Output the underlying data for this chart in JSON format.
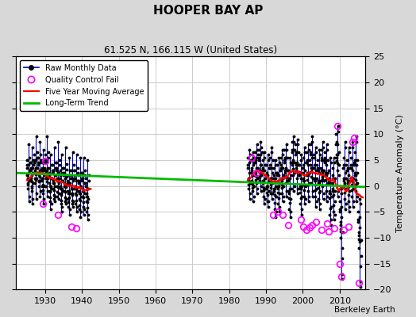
{
  "title": "HOOPER BAY AP",
  "subtitle": "61.525 N, 166.115 W (United States)",
  "ylabel": "Temperature Anomaly (°C)",
  "credit": "Berkeley Earth",
  "xlim": [
    1922,
    2017
  ],
  "ylim": [
    -20,
    25
  ],
  "yticks": [
    -20,
    -15,
    -10,
    -5,
    0,
    5,
    10,
    15,
    20,
    25
  ],
  "xticks": [
    1930,
    1940,
    1950,
    1960,
    1970,
    1980,
    1990,
    2000,
    2010
  ],
  "trend_x": [
    1922,
    2017
  ],
  "trend_y": [
    2.5,
    -0.2
  ],
  "raw_color": "#0000cc",
  "dot_color": "#000000",
  "qc_color": "#ff00ff",
  "ma_color": "#ff0000",
  "trend_color": "#00bb00",
  "bg_color": "#d8d8d8",
  "plot_bg": "#ffffff",
  "grid_color": "#cccccc",
  "seg1": {
    "year_start": 1925,
    "year_end": 1941,
    "annual_max": [
      8.0,
      7.5,
      9.5,
      8.5,
      7.0,
      9.5,
      6.0,
      7.5,
      8.5,
      6.0,
      7.5,
      5.5,
      6.5,
      6.0,
      5.5,
      5.5,
      5.0
    ],
    "annual_min": [
      -3.0,
      -3.5,
      -2.5,
      -2.0,
      -3.5,
      -2.0,
      -4.5,
      -3.0,
      -2.5,
      -5.0,
      -3.5,
      -5.5,
      -4.0,
      -5.0,
      -6.0,
      -5.5,
      -6.5
    ],
    "annual_mean": [
      2.5,
      2.2,
      2.8,
      2.5,
      1.8,
      2.5,
      1.0,
      1.5,
      2.0,
      0.8,
      1.5,
      0.2,
      1.0,
      0.8,
      0.2,
      0.5,
      -0.2
    ],
    "monthly_vals": [
      [
        3.5,
        5.0,
        4.0,
        2.0,
        1.5,
        0.5,
        -0.5,
        0.2,
        1.2,
        2.5,
        4.0,
        8.0,
        -3.0,
        -2.0,
        1.0,
        3.0,
        5.5,
        4.5
      ],
      [
        3.0,
        4.5,
        3.5,
        1.5,
        1.0,
        0.0,
        -1.0,
        -0.3,
        0.8,
        2.0,
        3.5,
        7.5,
        -3.5,
        -2.5,
        0.5,
        2.5,
        5.0,
        4.0
      ],
      [
        4.5,
        6.0,
        5.0,
        3.0,
        2.5,
        1.5,
        0.5,
        1.2,
        2.2,
        3.5,
        5.0,
        9.5,
        -2.5,
        -1.5,
        1.5,
        3.5,
        6.5,
        5.5
      ],
      [
        4.0,
        5.5,
        4.5,
        2.5,
        2.0,
        1.0,
        0.0,
        0.8,
        1.8,
        3.0,
        4.5,
        8.5,
        -2.0,
        -1.0,
        1.0,
        3.0,
        6.0,
        5.0
      ],
      [
        3.0,
        4.5,
        3.5,
        1.5,
        1.0,
        0.0,
        -1.5,
        -0.8,
        0.2,
        1.5,
        3.0,
        7.0,
        -3.5,
        -2.5,
        0.0,
        2.0,
        4.5,
        3.5
      ],
      [
        4.5,
        6.0,
        5.0,
        3.0,
        2.5,
        1.5,
        0.0,
        0.8,
        1.8,
        3.0,
        4.5,
        9.5,
        -2.0,
        -1.0,
        1.5,
        3.5,
        6.5,
        5.5
      ],
      [
        2.0,
        3.5,
        2.5,
        0.5,
        0.0,
        -1.0,
        -3.0,
        -2.2,
        -1.2,
        0.0,
        1.5,
        6.0,
        -4.5,
        -3.5,
        -0.5,
        1.5,
        4.0,
        3.0
      ],
      [
        2.5,
        4.0,
        3.0,
        1.0,
        0.5,
        -0.5,
        -2.5,
        -1.8,
        -0.8,
        0.5,
        2.0,
        7.5,
        -3.0,
        -2.0,
        0.0,
        2.0,
        4.5,
        3.5
      ],
      [
        3.0,
        4.5,
        3.5,
        1.5,
        1.0,
        0.0,
        -2.0,
        -1.2,
        -0.2,
        1.0,
        2.5,
        8.5,
        -2.5,
        -1.5,
        0.5,
        2.5,
        5.0,
        4.0
      ],
      [
        1.5,
        3.0,
        2.0,
        0.0,
        -0.5,
        -1.5,
        -3.5,
        -2.8,
        -1.8,
        -0.5,
        1.0,
        6.0,
        -5.0,
        -4.0,
        -1.0,
        1.0,
        3.5,
        2.5
      ],
      [
        2.0,
        3.5,
        2.5,
        0.5,
        0.0,
        -1.0,
        -3.0,
        -2.2,
        -1.2,
        0.0,
        1.5,
        7.5,
        -3.5,
        -2.5,
        -0.2,
        1.8,
        4.2,
        3.2
      ],
      [
        0.5,
        2.0,
        1.0,
        -1.0,
        -1.5,
        -2.5,
        -4.0,
        -3.2,
        -2.2,
        -1.0,
        0.5,
        5.5,
        -5.5,
        -4.5,
        -1.5,
        0.5,
        3.0,
        2.0
      ],
      [
        1.5,
        3.0,
        2.0,
        0.0,
        -0.5,
        -1.5,
        -3.5,
        -2.8,
        -1.8,
        -0.5,
        1.0,
        6.5,
        -4.0,
        -3.0,
        -0.5,
        1.5,
        4.0,
        3.0
      ],
      [
        1.5,
        3.0,
        2.0,
        0.0,
        -0.5,
        -1.5,
        -3.5,
        -2.8,
        -1.8,
        -0.5,
        1.0,
        6.0,
        -5.0,
        -4.0,
        -1.0,
        1.0,
        3.5,
        2.5
      ],
      [
        0.5,
        2.0,
        1.0,
        -1.0,
        -1.5,
        -2.5,
        -4.5,
        -3.8,
        -2.8,
        -1.5,
        0.0,
        5.5,
        -6.0,
        -5.0,
        -2.0,
        0.0,
        2.5,
        1.5
      ],
      [
        1.0,
        2.5,
        1.5,
        -0.5,
        -1.0,
        -2.0,
        -4.0,
        -3.2,
        -2.2,
        -1.0,
        0.5,
        5.5,
        -5.5,
        -4.5,
        -1.5,
        0.5,
        3.0,
        2.0
      ],
      [
        0.0,
        1.5,
        0.5,
        -1.5,
        -2.0,
        -3.0,
        -5.0,
        -4.2,
        -3.2,
        -2.0,
        -0.5,
        5.0,
        -6.5,
        -5.5,
        -2.5,
        -0.5,
        2.0,
        1.0
      ]
    ],
    "qc_points": [
      [
        1929.3,
        -3.5
      ],
      [
        1930.1,
        4.8
      ],
      [
        1933.5,
        -5.5
      ],
      [
        1937.2,
        -7.8
      ],
      [
        1938.4,
        -8.2
      ]
    ]
  },
  "seg2": {
    "year_start": 1985,
    "year_end": 2015,
    "annual_max": [
      7.0,
      6.5,
      8.0,
      8.5,
      6.5,
      6.0,
      7.5,
      5.0,
      5.5,
      7.0,
      8.0,
      5.5,
      9.5,
      9.0,
      6.0,
      7.5,
      8.0,
      9.5,
      7.5,
      7.0,
      8.5,
      8.0,
      5.5,
      5.5,
      11.5,
      10.5,
      8.5,
      7.5,
      8.5,
      9.5,
      5.5
    ],
    "annual_min": [
      -2.5,
      -3.0,
      -1.5,
      -1.0,
      -3.5,
      -4.0,
      -2.5,
      -6.0,
      -5.0,
      -3.0,
      -2.0,
      -6.0,
      -1.0,
      -1.5,
      -5.5,
      -3.5,
      -3.0,
      -2.0,
      -4.0,
      -4.5,
      -2.5,
      -3.0,
      -7.5,
      -6.5,
      -2.0,
      -18.0,
      -4.5,
      -5.0,
      -4.0,
      -3.0,
      -19.5
    ],
    "annual_mean": [
      1.5,
      1.2,
      2.0,
      2.5,
      1.0,
      0.5,
      1.5,
      -0.5,
      0.0,
      1.5,
      2.5,
      -1.0,
      3.5,
      3.0,
      0.5,
      1.5,
      2.0,
      3.0,
      1.2,
      0.8,
      2.0,
      1.5,
      -1.0,
      -0.5,
      2.5,
      -2.5,
      1.5,
      1.0,
      1.5,
      2.0,
      -3.5
    ],
    "monthly_vals": [
      [
        3.5,
        5.5,
        4.0,
        1.5,
        1.0,
        0.2,
        -0.5,
        0.8,
        2.5,
        4.5,
        7.0,
        6.0,
        -2.5,
        -1.5,
        0.5,
        2.5,
        5.0
      ],
      [
        3.0,
        5.0,
        3.5,
        1.0,
        0.5,
        -0.3,
        -1.0,
        0.3,
        2.0,
        4.0,
        6.5,
        5.5,
        -3.0,
        -2.0,
        0.0,
        2.0,
        4.5
      ],
      [
        4.5,
        6.5,
        5.0,
        2.5,
        2.0,
        1.2,
        0.5,
        1.8,
        3.5,
        5.5,
        8.0,
        7.0,
        -1.5,
        -0.5,
        1.5,
        3.5,
        6.0
      ],
      [
        5.0,
        7.0,
        5.5,
        3.0,
        2.5,
        1.8,
        1.0,
        2.3,
        4.0,
        6.0,
        8.5,
        7.5,
        -1.0,
        0.0,
        2.0,
        4.0,
        6.5
      ],
      [
        3.0,
        5.0,
        3.5,
        1.0,
        0.5,
        -0.3,
        -2.0,
        -0.8,
        1.0,
        3.0,
        6.5,
        5.5,
        -3.5,
        -2.5,
        -0.5,
        1.5,
        4.0
      ],
      [
        2.0,
        4.0,
        2.5,
        0.0,
        -0.5,
        -1.3,
        -3.0,
        -1.8,
        0.0,
        2.0,
        6.0,
        5.0,
        -4.0,
        -3.0,
        -1.0,
        1.0,
        3.5
      ],
      [
        3.5,
        5.5,
        4.0,
        1.5,
        1.0,
        0.2,
        -1.5,
        -0.3,
        1.5,
        3.5,
        7.5,
        6.5,
        -2.5,
        -1.5,
        0.5,
        2.5,
        5.0
      ],
      [
        1.5,
        3.5,
        2.0,
        -0.5,
        -1.0,
        -1.8,
        -4.5,
        -3.3,
        -0.5,
        1.5,
        5.0,
        4.0,
        -6.0,
        -5.0,
        -2.0,
        0.0,
        2.5
      ],
      [
        2.0,
        4.0,
        2.5,
        0.0,
        -0.5,
        -1.3,
        -3.5,
        -2.3,
        0.0,
        2.0,
        5.5,
        4.5,
        -5.0,
        -4.0,
        -1.5,
        0.5,
        3.0
      ],
      [
        3.5,
        5.5,
        4.0,
        1.5,
        1.0,
        0.2,
        -1.5,
        -0.3,
        1.5,
        3.5,
        7.0,
        6.0,
        -3.0,
        -2.0,
        0.0,
        2.0,
        4.5
      ],
      [
        5.0,
        7.0,
        5.5,
        3.0,
        2.5,
        1.8,
        0.5,
        1.8,
        3.5,
        5.5,
        8.0,
        7.0,
        -2.0,
        -1.0,
        1.0,
        3.0,
        5.5
      ],
      [
        1.0,
        3.0,
        1.5,
        -1.0,
        -1.5,
        -2.3,
        -4.5,
        -3.3,
        -0.5,
        1.5,
        5.5,
        4.5,
        -6.0,
        -5.0,
        -2.5,
        -0.5,
        2.0
      ],
      [
        6.5,
        8.5,
        7.0,
        4.5,
        4.0,
        3.2,
        2.0,
        3.3,
        5.0,
        7.0,
        9.5,
        8.5,
        -1.0,
        0.0,
        2.5,
        4.5,
        7.0
      ],
      [
        6.0,
        8.0,
        6.5,
        4.0,
        3.5,
        2.8,
        1.5,
        2.8,
        4.5,
        6.5,
        9.0,
        8.0,
        -1.5,
        -0.5,
        2.0,
        4.0,
        6.5
      ],
      [
        2.0,
        4.0,
        2.5,
        0.0,
        -0.5,
        -1.3,
        -3.5,
        -2.3,
        -0.5,
        1.5,
        6.0,
        5.0,
        -5.5,
        -4.5,
        -2.0,
        0.0,
        2.5
      ],
      [
        3.5,
        5.5,
        4.0,
        1.5,
        1.0,
        0.2,
        -2.0,
        -0.8,
        1.0,
        3.0,
        7.5,
        6.5,
        -3.5,
        -2.5,
        0.0,
        2.0,
        4.5
      ],
      [
        4.5,
        6.5,
        5.0,
        2.5,
        2.0,
        1.2,
        -1.0,
        0.3,
        2.0,
        4.0,
        8.0,
        7.0,
        -3.0,
        -2.0,
        0.5,
        2.5,
        5.0
      ],
      [
        6.0,
        8.0,
        6.5,
        4.0,
        3.5,
        2.8,
        0.5,
        1.8,
        3.5,
        5.5,
        9.5,
        8.5,
        -2.0,
        -1.0,
        1.5,
        3.5,
        6.0
      ],
      [
        3.5,
        5.5,
        4.0,
        1.5,
        1.0,
        0.2,
        -2.0,
        -0.8,
        1.0,
        3.0,
        7.5,
        6.5,
        -4.0,
        -3.0,
        -0.5,
        1.5,
        4.0
      ],
      [
        3.0,
        5.0,
        3.5,
        1.0,
        0.5,
        -0.3,
        -2.5,
        -1.3,
        0.5,
        2.5,
        7.0,
        6.0,
        -4.5,
        -3.5,
        -1.0,
        1.0,
        3.5
      ],
      [
        5.0,
        7.0,
        5.5,
        3.0,
        2.5,
        1.8,
        0.0,
        1.3,
        3.0,
        5.0,
        8.5,
        7.5,
        -2.5,
        -1.5,
        1.0,
        3.0,
        5.5
      ],
      [
        4.5,
        6.5,
        5.0,
        2.5,
        2.0,
        1.2,
        -1.0,
        0.3,
        2.0,
        4.0,
        8.0,
        7.0,
        -3.0,
        -2.0,
        0.5,
        2.5,
        5.0
      ],
      [
        1.0,
        3.0,
        1.5,
        -1.0,
        -1.5,
        -2.3,
        -5.5,
        -4.3,
        -1.5,
        0.5,
        5.5,
        4.5,
        -7.5,
        -6.5,
        -4.0,
        -2.0,
        0.5
      ],
      [
        1.5,
        3.5,
        2.0,
        -0.5,
        -1.0,
        -1.8,
        -5.0,
        -3.8,
        -1.0,
        1.0,
        5.5,
        4.5,
        -6.5,
        -5.5,
        -3.0,
        -1.0,
        1.5
      ],
      [
        8.0,
        10.0,
        8.5,
        6.0,
        5.5,
        4.8,
        3.0,
        4.3,
        6.0,
        8.0,
        11.5,
        10.5,
        -2.0,
        -1.0,
        2.0,
        4.0,
        6.5
      ],
      [
        -5.0,
        -3.0,
        -4.5,
        -7.0,
        -7.5,
        -8.3,
        -10.0,
        -8.8,
        -6.0,
        -4.0,
        -0.5,
        -1.5,
        -18.0,
        -17.0,
        -14.0,
        -12.0,
        -9.0
      ],
      [
        3.5,
        5.5,
        4.0,
        1.5,
        1.0,
        0.2,
        -2.5,
        -1.3,
        0.5,
        2.5,
        8.5,
        7.5,
        -4.5,
        -3.5,
        -0.5,
        1.5,
        4.0
      ],
      [
        3.0,
        5.0,
        3.5,
        1.0,
        0.5,
        -0.3,
        -3.0,
        -1.8,
        0.0,
        2.0,
        7.5,
        6.5,
        -5.0,
        -4.0,
        -1.0,
        1.0,
        3.5
      ],
      [
        3.5,
        5.5,
        4.0,
        1.5,
        1.0,
        0.2,
        -2.0,
        -0.8,
        1.0,
        3.0,
        8.5,
        7.5,
        -4.0,
        -3.0,
        -0.5,
        1.5,
        4.0
      ],
      [
        4.5,
        6.5,
        5.0,
        2.5,
        2.0,
        1.2,
        -1.0,
        0.3,
        2.0,
        4.0,
        9.5,
        8.5,
        -3.0,
        -2.0,
        0.5,
        2.5,
        5.0
      ],
      [
        -7.0,
        -5.0,
        -6.5,
        -9.0,
        -9.5,
        -10.3,
        -12.0,
        -10.8,
        -8.0,
        -6.0,
        -2.5,
        -3.5,
        -19.5,
        -18.5,
        -15.5,
        -13.5,
        -10.5
      ]
    ],
    "qc_points": [
      [
        1986.0,
        5.5
      ],
      [
        1987.5,
        2.5
      ],
      [
        1992.0,
        -5.5
      ],
      [
        1993.3,
        -5.0
      ],
      [
        1994.5,
        -5.5
      ],
      [
        1996.0,
        -7.5
      ],
      [
        1999.5,
        -6.5
      ],
      [
        2000.2,
        -7.8
      ],
      [
        2001.0,
        -8.5
      ],
      [
        2001.8,
        -8.0
      ],
      [
        2002.5,
        -7.5
      ],
      [
        2003.5,
        -7.0
      ],
      [
        2005.0,
        -8.5
      ],
      [
        2006.5,
        -7.2
      ],
      [
        2007.0,
        -8.8
      ],
      [
        2008.5,
        -8.2
      ],
      [
        2009.3,
        11.5
      ],
      [
        2010.0,
        -15.0
      ],
      [
        2010.5,
        -17.5
      ],
      [
        2011.2,
        -8.5
      ],
      [
        2012.5,
        -7.8
      ],
      [
        2013.5,
        8.5
      ],
      [
        2014.0,
        9.2
      ],
      [
        2015.3,
        -18.8
      ]
    ]
  }
}
